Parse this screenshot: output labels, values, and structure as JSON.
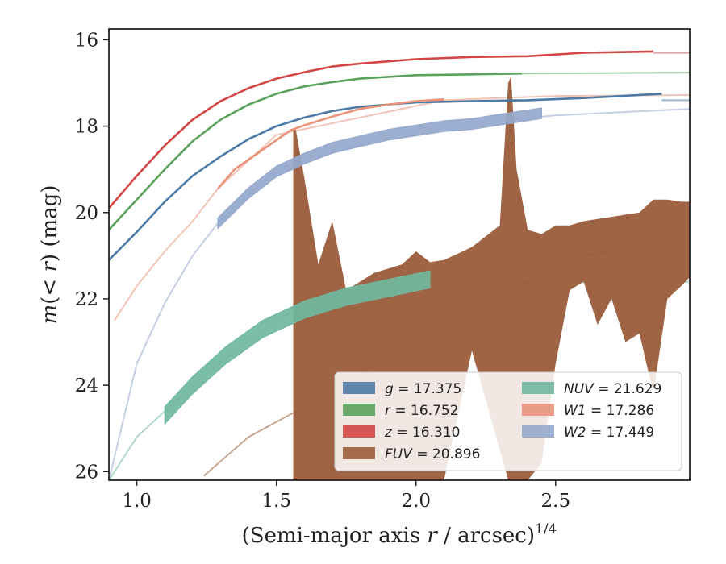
{
  "chart_data": {
    "type": "line",
    "title": "",
    "xlabel_parts": {
      "pre": "(Semi-major axis ",
      "var": "r",
      "post": " / arcsec)",
      "exp": "1/4"
    },
    "ylabel_parts": {
      "pre": "m",
      "mid": "(< ",
      "var": "r",
      "post": ") (mag)"
    },
    "xlim": [
      0.9,
      2.98
    ],
    "ylim": [
      26.2,
      15.75
    ],
    "y_inverted": true,
    "x_ticks": [
      1.0,
      1.5,
      2.0,
      2.5
    ],
    "x_tick_labels": [
      "1.0",
      "1.5",
      "2.0",
      "2.5"
    ],
    "y_ticks": [
      16,
      18,
      20,
      22,
      24,
      26
    ],
    "y_tick_labels": [
      "16",
      "18",
      "20",
      "22",
      "24",
      "26"
    ],
    "grid": false,
    "legend_position": "lower-right",
    "series": [
      {
        "name": "g",
        "value": "17.375",
        "color": "#4c7aa6",
        "x": [
          0.9,
          1.0,
          1.1,
          1.2,
          1.3,
          1.4,
          1.5,
          1.6,
          1.7,
          1.8,
          2.0,
          2.2,
          2.4,
          2.6,
          2.88
        ],
        "y": [
          21.1,
          20.45,
          19.75,
          19.15,
          18.7,
          18.3,
          18.0,
          17.8,
          17.65,
          17.55,
          17.45,
          17.42,
          17.4,
          17.35,
          17.25
        ],
        "x_ext": [
          2.88,
          2.98
        ],
        "y_ext": [
          17.4,
          17.4
        ],
        "width": 0.06
      },
      {
        "name": "r",
        "value": "16.752",
        "color": "#5ba25b",
        "x": [
          0.9,
          1.0,
          1.1,
          1.2,
          1.3,
          1.4,
          1.5,
          1.6,
          1.7,
          1.8,
          2.0,
          2.2,
          2.38
        ],
        "y": [
          20.4,
          19.7,
          19.0,
          18.35,
          17.85,
          17.5,
          17.25,
          17.08,
          16.98,
          16.9,
          16.82,
          16.8,
          16.78
        ],
        "x_ext": [
          2.38,
          2.98
        ],
        "y_ext": [
          16.78,
          16.76
        ],
        "width": 0.06
      },
      {
        "name": "z",
        "value": "16.310",
        "color": "#d24644",
        "x": [
          0.9,
          1.0,
          1.1,
          1.2,
          1.3,
          1.4,
          1.5,
          1.6,
          1.7,
          1.8,
          2.0,
          2.2,
          2.4,
          2.6,
          2.85
        ],
        "y": [
          19.9,
          19.15,
          18.45,
          17.85,
          17.42,
          17.12,
          16.9,
          16.75,
          16.62,
          16.55,
          16.45,
          16.4,
          16.38,
          16.3,
          16.27
        ],
        "x_ext": [
          2.85,
          2.98
        ],
        "y_ext": [
          16.3,
          16.3
        ],
        "width": 0.06
      },
      {
        "name": "FUV",
        "value": "20.896",
        "color": "#9a5c3a",
        "band_x": [
          1.56,
          1.57,
          1.6,
          1.65,
          1.7,
          1.75,
          1.8,
          1.85,
          1.9,
          1.95,
          2.0,
          2.05,
          2.1,
          2.2,
          2.3,
          2.33,
          2.34,
          2.36,
          2.4,
          2.45,
          2.5,
          2.55,
          2.6,
          2.65,
          2.7,
          2.75,
          2.8,
          2.85,
          2.9,
          2.95,
          2.98
        ],
        "band_upper": [
          18.05,
          18.1,
          19.2,
          21.2,
          20.2,
          21.8,
          21.6,
          21.4,
          21.3,
          21.2,
          20.9,
          21.15,
          21.1,
          20.8,
          20.3,
          17.0,
          16.85,
          19.0,
          20.4,
          20.5,
          20.3,
          20.3,
          20.2,
          20.15,
          20.1,
          20.05,
          20.0,
          19.7,
          19.7,
          19.75,
          19.75
        ],
        "band_lower": [
          26.2,
          26.2,
          26.2,
          26.2,
          26.2,
          26.2,
          26.2,
          26.2,
          26.2,
          26.2,
          26.2,
          26.2,
          26.2,
          23.2,
          25.5,
          26.2,
          26.2,
          26.2,
          26.2,
          25.8,
          23.5,
          21.8,
          21.6,
          22.6,
          22.0,
          23.0,
          22.8,
          24.2,
          22.0,
          21.7,
          21.5
        ],
        "x_ext": [
          1.24,
          1.4,
          1.6,
          1.8,
          2.0,
          2.2,
          2.4,
          2.6,
          2.7,
          2.98
        ],
        "y_ext": [
          26.1,
          25.2,
          24.5,
          23.7,
          23.0,
          22.3,
          21.6,
          21.0,
          20.9,
          20.9
        ],
        "width": 0.06
      },
      {
        "name": "NUV",
        "value": "21.629",
        "color": "#70b8a0",
        "x": [
          1.1,
          1.2,
          1.32,
          1.45,
          1.6,
          1.75,
          1.9,
          2.05
        ],
        "y": [
          24.7,
          24.0,
          23.3,
          22.7,
          22.25,
          21.95,
          21.75,
          21.55
        ],
        "x_ext": [
          0.9,
          1.0,
          1.1,
          1.2,
          1.35,
          1.55,
          2.05,
          2.5,
          2.98
        ],
        "y_ext": [
          26.2,
          25.2,
          24.6,
          24.0,
          23.2,
          22.3,
          21.7,
          21.62,
          21.6
        ],
        "width": 0.4
      },
      {
        "name": "W1",
        "value": "17.286",
        "color": "#e8937a",
        "x": [
          1.29,
          1.35,
          1.45,
          1.55,
          1.6,
          1.7,
          1.8,
          1.9,
          2.0,
          2.1
        ],
        "y": [
          19.45,
          19.0,
          18.55,
          18.1,
          17.98,
          17.78,
          17.6,
          17.5,
          17.42,
          17.38
        ],
        "x_ext": [
          0.92,
          1.0,
          1.1,
          1.2,
          1.29,
          1.5,
          2.1,
          2.5,
          2.98
        ],
        "y_ext": [
          22.5,
          21.7,
          20.9,
          20.2,
          19.45,
          18.2,
          17.4,
          17.3,
          17.28
        ],
        "width": 0.06
      },
      {
        "name": "W2",
        "value": "17.449",
        "color": "#95a8cd",
        "x": [
          1.29,
          1.4,
          1.5,
          1.6,
          1.7,
          1.8,
          1.9,
          2.0,
          2.1,
          2.2,
          2.3,
          2.4,
          2.45
        ],
        "y": [
          20.25,
          19.55,
          19.05,
          18.75,
          18.5,
          18.35,
          18.2,
          18.1,
          18.0,
          17.95,
          17.85,
          17.75,
          17.7
        ],
        "x_ext": [
          0.9,
          1.0,
          1.1,
          1.2,
          1.29,
          1.5,
          2.0,
          2.5,
          2.98
        ],
        "y_ext": [
          26.2,
          23.5,
          22.1,
          21.0,
          20.25,
          19.0,
          18.05,
          17.75,
          17.6
        ],
        "width": 0.25
      }
    ]
  }
}
